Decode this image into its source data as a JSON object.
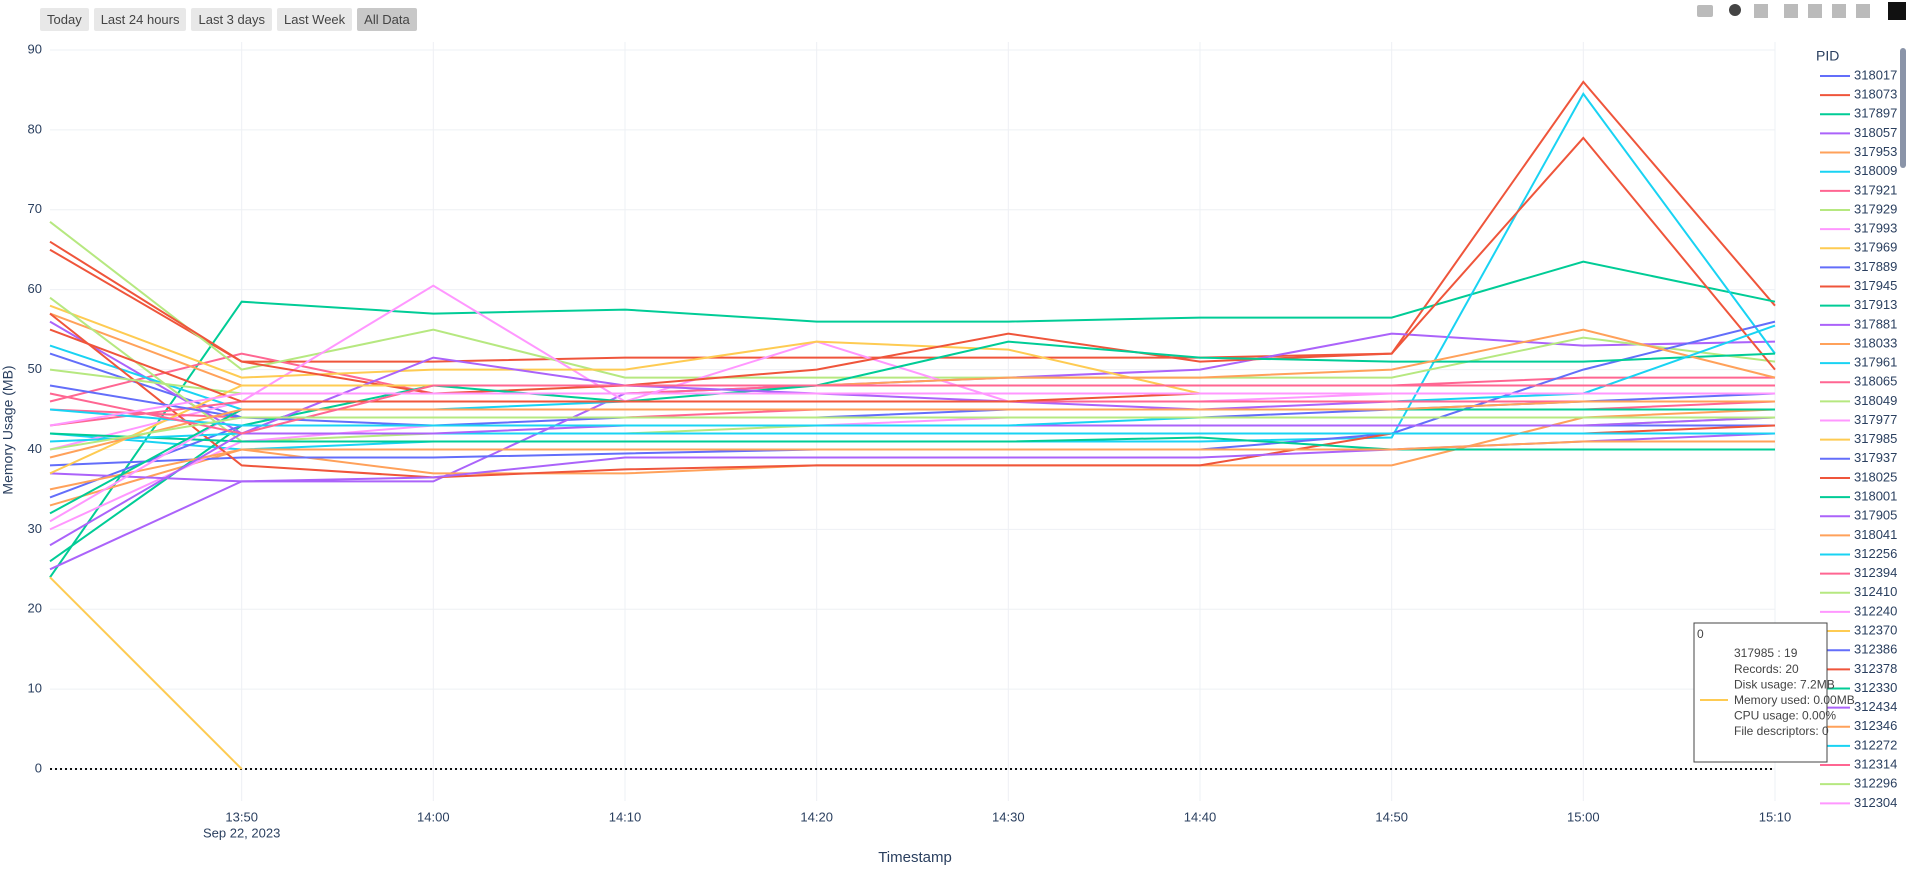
{
  "controls": {
    "buttons": [
      "Today",
      "Last 24 hours",
      "Last 3 days",
      "Last Week",
      "All Data"
    ]
  },
  "chart_data": {
    "type": "line",
    "x_label": "Timestamp",
    "y_label": "Memory Usage (MB)",
    "legend_title": "PID",
    "x": [
      "2023-09-22 13:40",
      "2023-09-22 13:50",
      "2023-09-22 14:00",
      "2023-09-22 14:10",
      "2023-09-22 14:20",
      "2023-09-22 14:30",
      "2023-09-22 14:40",
      "2023-09-22 14:50",
      "2023-09-22 15:00",
      "2023-09-22 15:10"
    ],
    "xlim": [
      "2023-09-22 13:40",
      "2023-09-22 15:10"
    ],
    "xticks": [
      {
        "value": "2023-09-22 13:50",
        "label": "13:50"
      },
      {
        "value": "2023-09-22 14:00",
        "label": "14:00"
      },
      {
        "value": "2023-09-22 14:10",
        "label": "14:10"
      },
      {
        "value": "2023-09-22 14:20",
        "label": "14:20"
      },
      {
        "value": "2023-09-22 14:30",
        "label": "14:30"
      },
      {
        "value": "2023-09-22 14:40",
        "label": "14:40"
      },
      {
        "value": "2023-09-22 14:50",
        "label": "14:50"
      },
      {
        "value": "2023-09-22 15:00",
        "label": "15:00"
      },
      {
        "value": "2023-09-22 15:10",
        "label": "15:10"
      }
    ],
    "x_date_label": "Sep 22, 2023",
    "ylim": [
      -4,
      91
    ],
    "yticks": [
      0,
      10,
      20,
      30,
      40,
      50,
      60,
      70,
      80,
      90
    ],
    "grid": true,
    "reference_line": 0,
    "series": [
      {
        "name": "318017",
        "color": "#636efa",
        "values": [
          52,
          44,
          43,
          44,
          44,
          44,
          44,
          45,
          46,
          47
        ]
      },
      {
        "name": "318073",
        "color": "#EF553B",
        "values": [
          65,
          51,
          51,
          51.5,
          51.5,
          51.5,
          51.5,
          52,
          86,
          58
        ]
      },
      {
        "name": "317897",
        "color": "#00cc96",
        "values": [
          24,
          58.5,
          57,
          57.5,
          56,
          56,
          56.5,
          56.5,
          63.5,
          58.5
        ]
      },
      {
        "name": "318057",
        "color": "#ab63fa",
        "values": [
          25,
          36,
          36,
          47,
          48,
          49,
          50,
          54.5,
          53,
          53.5
        ]
      },
      {
        "name": "317953",
        "color": "#FFA15A",
        "values": [
          33,
          40,
          37,
          37,
          38,
          38,
          38,
          38,
          44,
          45
        ]
      },
      {
        "name": "318009",
        "color": "#19d3f3",
        "values": [
          42,
          40,
          41,
          41,
          41,
          41,
          41,
          41.5,
          84.5,
          52
        ]
      },
      {
        "name": "317921",
        "color": "#FF6692",
        "values": [
          46,
          52,
          47,
          47,
          48,
          48,
          48,
          48,
          49,
          49
        ]
      },
      {
        "name": "317929",
        "color": "#B6E880",
        "values": [
          68.5,
          50,
          55,
          49,
          49,
          49,
          49,
          49,
          54,
          51
        ]
      },
      {
        "name": "317993",
        "color": "#FF97FF",
        "values": [
          40,
          46,
          60.5,
          46,
          53.5,
          46,
          46,
          47,
          47,
          47
        ]
      },
      {
        "name": "317969",
        "color": "#FECB52",
        "values": [
          58,
          49,
          50,
          50,
          53.5,
          52.5,
          47,
          47,
          47,
          47
        ]
      },
      {
        "name": "317889",
        "color": "#636efa",
        "values": [
          38,
          39,
          39,
          39.5,
          40,
          40,
          40,
          42,
          50,
          56
        ]
      },
      {
        "name": "317945",
        "color": "#EF553B",
        "values": [
          66,
          51,
          47,
          48,
          50,
          54.5,
          51,
          52,
          79,
          50
        ]
      },
      {
        "name": "317913",
        "color": "#00cc96",
        "values": [
          26,
          43,
          48,
          46,
          48,
          53.5,
          51.5,
          51,
          51,
          52
        ]
      },
      {
        "name": "317881",
        "color": "#ab63fa",
        "values": [
          56,
          42,
          51.5,
          48,
          47,
          46,
          45,
          46,
          46,
          46
        ]
      },
      {
        "name": "318033",
        "color": "#FFA15A",
        "values": [
          57,
          48,
          48,
          48,
          48,
          49,
          49,
          50,
          55,
          49
        ]
      },
      {
        "name": "317961",
        "color": "#19d3f3",
        "values": [
          53,
          45,
          45,
          46,
          46,
          46,
          46,
          46,
          47,
          55.5
        ]
      },
      {
        "name": "318065",
        "color": "#FF6692",
        "values": [
          45,
          44,
          44,
          44,
          45,
          45,
          45,
          45,
          45,
          46
        ]
      },
      {
        "name": "318049",
        "color": "#B6E880",
        "values": [
          59,
          41,
          42,
          42,
          43,
          43,
          43,
          43,
          43,
          44
        ]
      },
      {
        "name": "317977",
        "color": "#FF97FF",
        "values": [
          30,
          41,
          43,
          43,
          43,
          44,
          44,
          44,
          44,
          44
        ]
      },
      {
        "name": "317985",
        "color": "#FECB52",
        "values": [
          24,
          0,
          null,
          null,
          null,
          null,
          null,
          null,
          null,
          null
        ]
      },
      {
        "name": "317937",
        "color": "#636efa",
        "values": [
          34,
          43,
          43,
          43,
          43,
          43,
          43,
          43,
          43,
          43
        ]
      },
      {
        "name": "318025",
        "color": "#EF553B",
        "values": [
          57,
          38,
          36.5,
          37.5,
          38,
          38,
          38,
          42,
          42,
          43
        ]
      },
      {
        "name": "318001",
        "color": "#00cc96",
        "values": [
          42,
          41,
          41,
          41,
          41,
          41,
          41.5,
          40,
          40,
          40
        ]
      },
      {
        "name": "317905",
        "color": "#ab63fa",
        "values": [
          37,
          36,
          36.5,
          39,
          39,
          39,
          39,
          40,
          41,
          42
        ]
      },
      {
        "name": "318041",
        "color": "#FFA15A",
        "values": [
          35,
          40,
          40,
          40,
          40,
          40,
          40,
          40,
          41,
          41
        ]
      },
      {
        "name": "312256",
        "color": "#19d3f3",
        "values": [
          41,
          42,
          42,
          42,
          42,
          42,
          42,
          42,
          42,
          42
        ]
      },
      {
        "name": "312394",
        "color": "#FF6692",
        "values": [
          43,
          46,
          46,
          46,
          46,
          46,
          46,
          46,
          46,
          46
        ]
      },
      {
        "name": "312410",
        "color": "#B6E880",
        "values": [
          50,
          47,
          47,
          47,
          47,
          47,
          47,
          47,
          47,
          47
        ]
      },
      {
        "name": "312240",
        "color": "#FF97FF",
        "values": [
          31,
          45,
          45,
          45,
          45,
          45,
          45,
          45,
          45,
          45
        ]
      },
      {
        "name": "312370",
        "color": "#FECB52",
        "values": [
          37,
          48,
          48,
          48,
          48,
          48,
          48,
          48,
          48,
          48
        ]
      },
      {
        "name": "312386",
        "color": "#636efa",
        "values": [
          48,
          44,
          44,
          44,
          44,
          45,
          45,
          45,
          45,
          45
        ]
      },
      {
        "name": "312378",
        "color": "#EF553B",
        "values": [
          55,
          46,
          46,
          46,
          46,
          46,
          47,
          47,
          47,
          47
        ]
      },
      {
        "name": "312330",
        "color": "#00cc96",
        "values": [
          32,
          45,
          45,
          45,
          45,
          45,
          45,
          45,
          45,
          45
        ]
      },
      {
        "name": "312434",
        "color": "#ab63fa",
        "values": [
          28,
          42,
          42,
          43,
          43,
          43,
          43,
          43,
          43,
          44
        ]
      },
      {
        "name": "312346",
        "color": "#FFA15A",
        "values": [
          39,
          45,
          45,
          45,
          45,
          45,
          45,
          45,
          46,
          46
        ]
      },
      {
        "name": "312272",
        "color": "#19d3f3",
        "values": [
          45,
          43,
          43,
          43,
          43,
          43,
          44,
          44,
          44,
          44
        ]
      },
      {
        "name": "312314",
        "color": "#FF6692",
        "values": [
          47,
          42,
          48,
          48,
          48,
          48,
          48,
          48,
          48,
          48
        ]
      },
      {
        "name": "312296",
        "color": "#B6E880",
        "values": [
          40,
          44,
          44,
          44,
          44,
          44,
          44,
          44,
          44,
          44
        ]
      },
      {
        "name": "312304",
        "color": "#FF97FF",
        "values": [
          43,
          47,
          47,
          47,
          47,
          47,
          47,
          47,
          47,
          47
        ]
      }
    ],
    "tooltip": {
      "title": "0",
      "color": "#FECB52",
      "lines": [
        "317985 : 19",
        "Records: 20",
        "Disk usage: 7.2MB",
        "Memory used: 0.00MB",
        "CPU usage: 0.00%",
        "File descriptors: 0"
      ]
    }
  }
}
